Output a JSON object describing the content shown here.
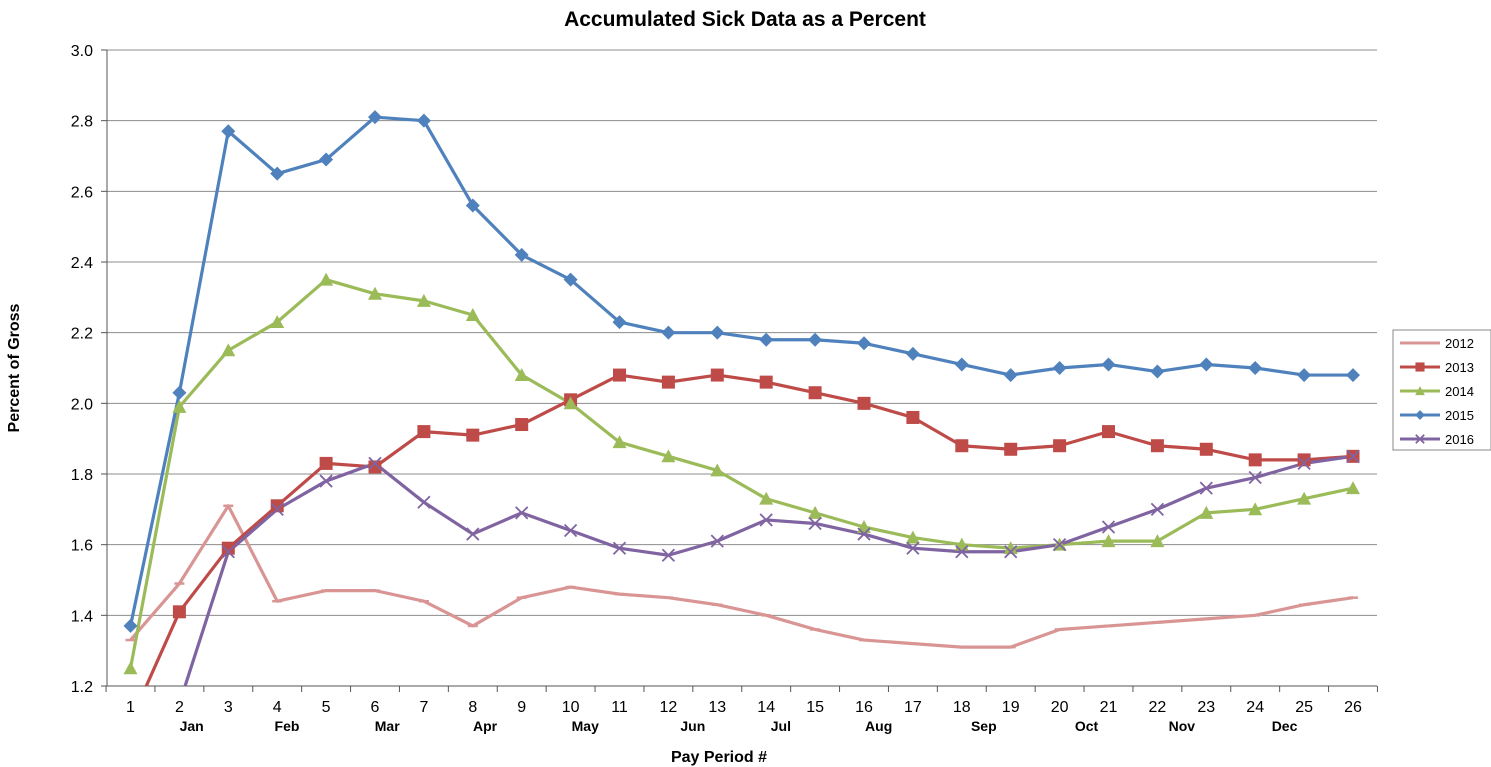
{
  "chart_data": {
    "type": "line",
    "title": "Accumulated Sick Data as a Percent",
    "xlabel": "Pay Period #",
    "ylabel": "Percent of Gross",
    "ylim": [
      1.2,
      3.0
    ],
    "yticks": [
      "1.2",
      "1.4",
      "1.6",
      "1.8",
      "2.0",
      "2.2",
      "2.4",
      "2.6",
      "2.8",
      "3.0"
    ],
    "x": [
      1,
      2,
      3,
      4,
      5,
      6,
      7,
      8,
      9,
      10,
      11,
      12,
      13,
      14,
      15,
      16,
      17,
      18,
      19,
      20,
      21,
      22,
      23,
      24,
      25,
      26
    ],
    "month_labels": [
      {
        "label": "Jan",
        "at": 2.25
      },
      {
        "label": "Feb",
        "at": 4.2
      },
      {
        "label": "Mar",
        "at": 6.25
      },
      {
        "label": "Apr",
        "at": 8.25
      },
      {
        "label": "May",
        "at": 10.3
      },
      {
        "label": "Jun",
        "at": 12.5
      },
      {
        "label": "Jul",
        "at": 14.3
      },
      {
        "label": "Aug",
        "at": 16.3
      },
      {
        "label": "Sep",
        "at": 18.45
      },
      {
        "label": "Oct",
        "at": 20.55
      },
      {
        "label": "Nov",
        "at": 22.5
      },
      {
        "label": "Dec",
        "at": 24.6
      }
    ],
    "grid": true,
    "legend_position": "right",
    "series": [
      {
        "name": "2012",
        "color": "#d99594",
        "marker": "dash",
        "values": [
          1.33,
          1.49,
          1.71,
          1.44,
          1.47,
          1.47,
          1.44,
          1.37,
          1.45,
          1.48,
          1.46,
          1.45,
          1.43,
          1.4,
          1.36,
          1.33,
          1.32,
          1.31,
          1.31,
          1.36,
          1.37,
          1.38,
          1.39,
          1.4,
          1.43,
          1.45
        ]
      },
      {
        "name": "2013",
        "color": "#be4b48",
        "marker": "square",
        "values": [
          1.1,
          1.41,
          1.59,
          1.71,
          1.83,
          1.82,
          1.92,
          1.91,
          1.94,
          2.01,
          2.08,
          2.06,
          2.08,
          2.06,
          2.03,
          2.0,
          1.96,
          1.88,
          1.87,
          1.88,
          1.92,
          1.88,
          1.87,
          1.84,
          1.84,
          1.85
        ]
      },
      {
        "name": "2014",
        "color": "#9bbb59",
        "marker": "triangle",
        "values": [
          1.25,
          1.99,
          2.15,
          2.23,
          2.35,
          2.31,
          2.29,
          2.25,
          2.08,
          2.0,
          1.89,
          1.85,
          1.81,
          1.73,
          1.69,
          1.65,
          1.62,
          1.6,
          1.59,
          1.6,
          1.61,
          1.61,
          1.69,
          1.7,
          1.73,
          1.76
        ]
      },
      {
        "name": "2015",
        "color": "#4f81bd",
        "marker": "diamond",
        "values": [
          1.37,
          2.03,
          2.77,
          2.65,
          2.69,
          2.81,
          2.8,
          2.56,
          2.42,
          2.35,
          2.23,
          2.2,
          2.2,
          2.18,
          2.18,
          2.17,
          2.14,
          2.11,
          2.08,
          2.1,
          2.11,
          2.09,
          2.11,
          2.1,
          2.08,
          2.08
        ]
      },
      {
        "name": "2016",
        "color": "#8064a2",
        "marker": "x",
        "values": [
          1.0,
          1.15,
          1.58,
          1.7,
          1.78,
          1.83,
          1.72,
          1.63,
          1.69,
          1.64,
          1.59,
          1.57,
          1.61,
          1.67,
          1.66,
          1.63,
          1.59,
          1.58,
          1.58,
          1.6,
          1.65,
          1.7,
          1.76,
          1.79,
          1.83,
          1.85
        ]
      }
    ]
  }
}
